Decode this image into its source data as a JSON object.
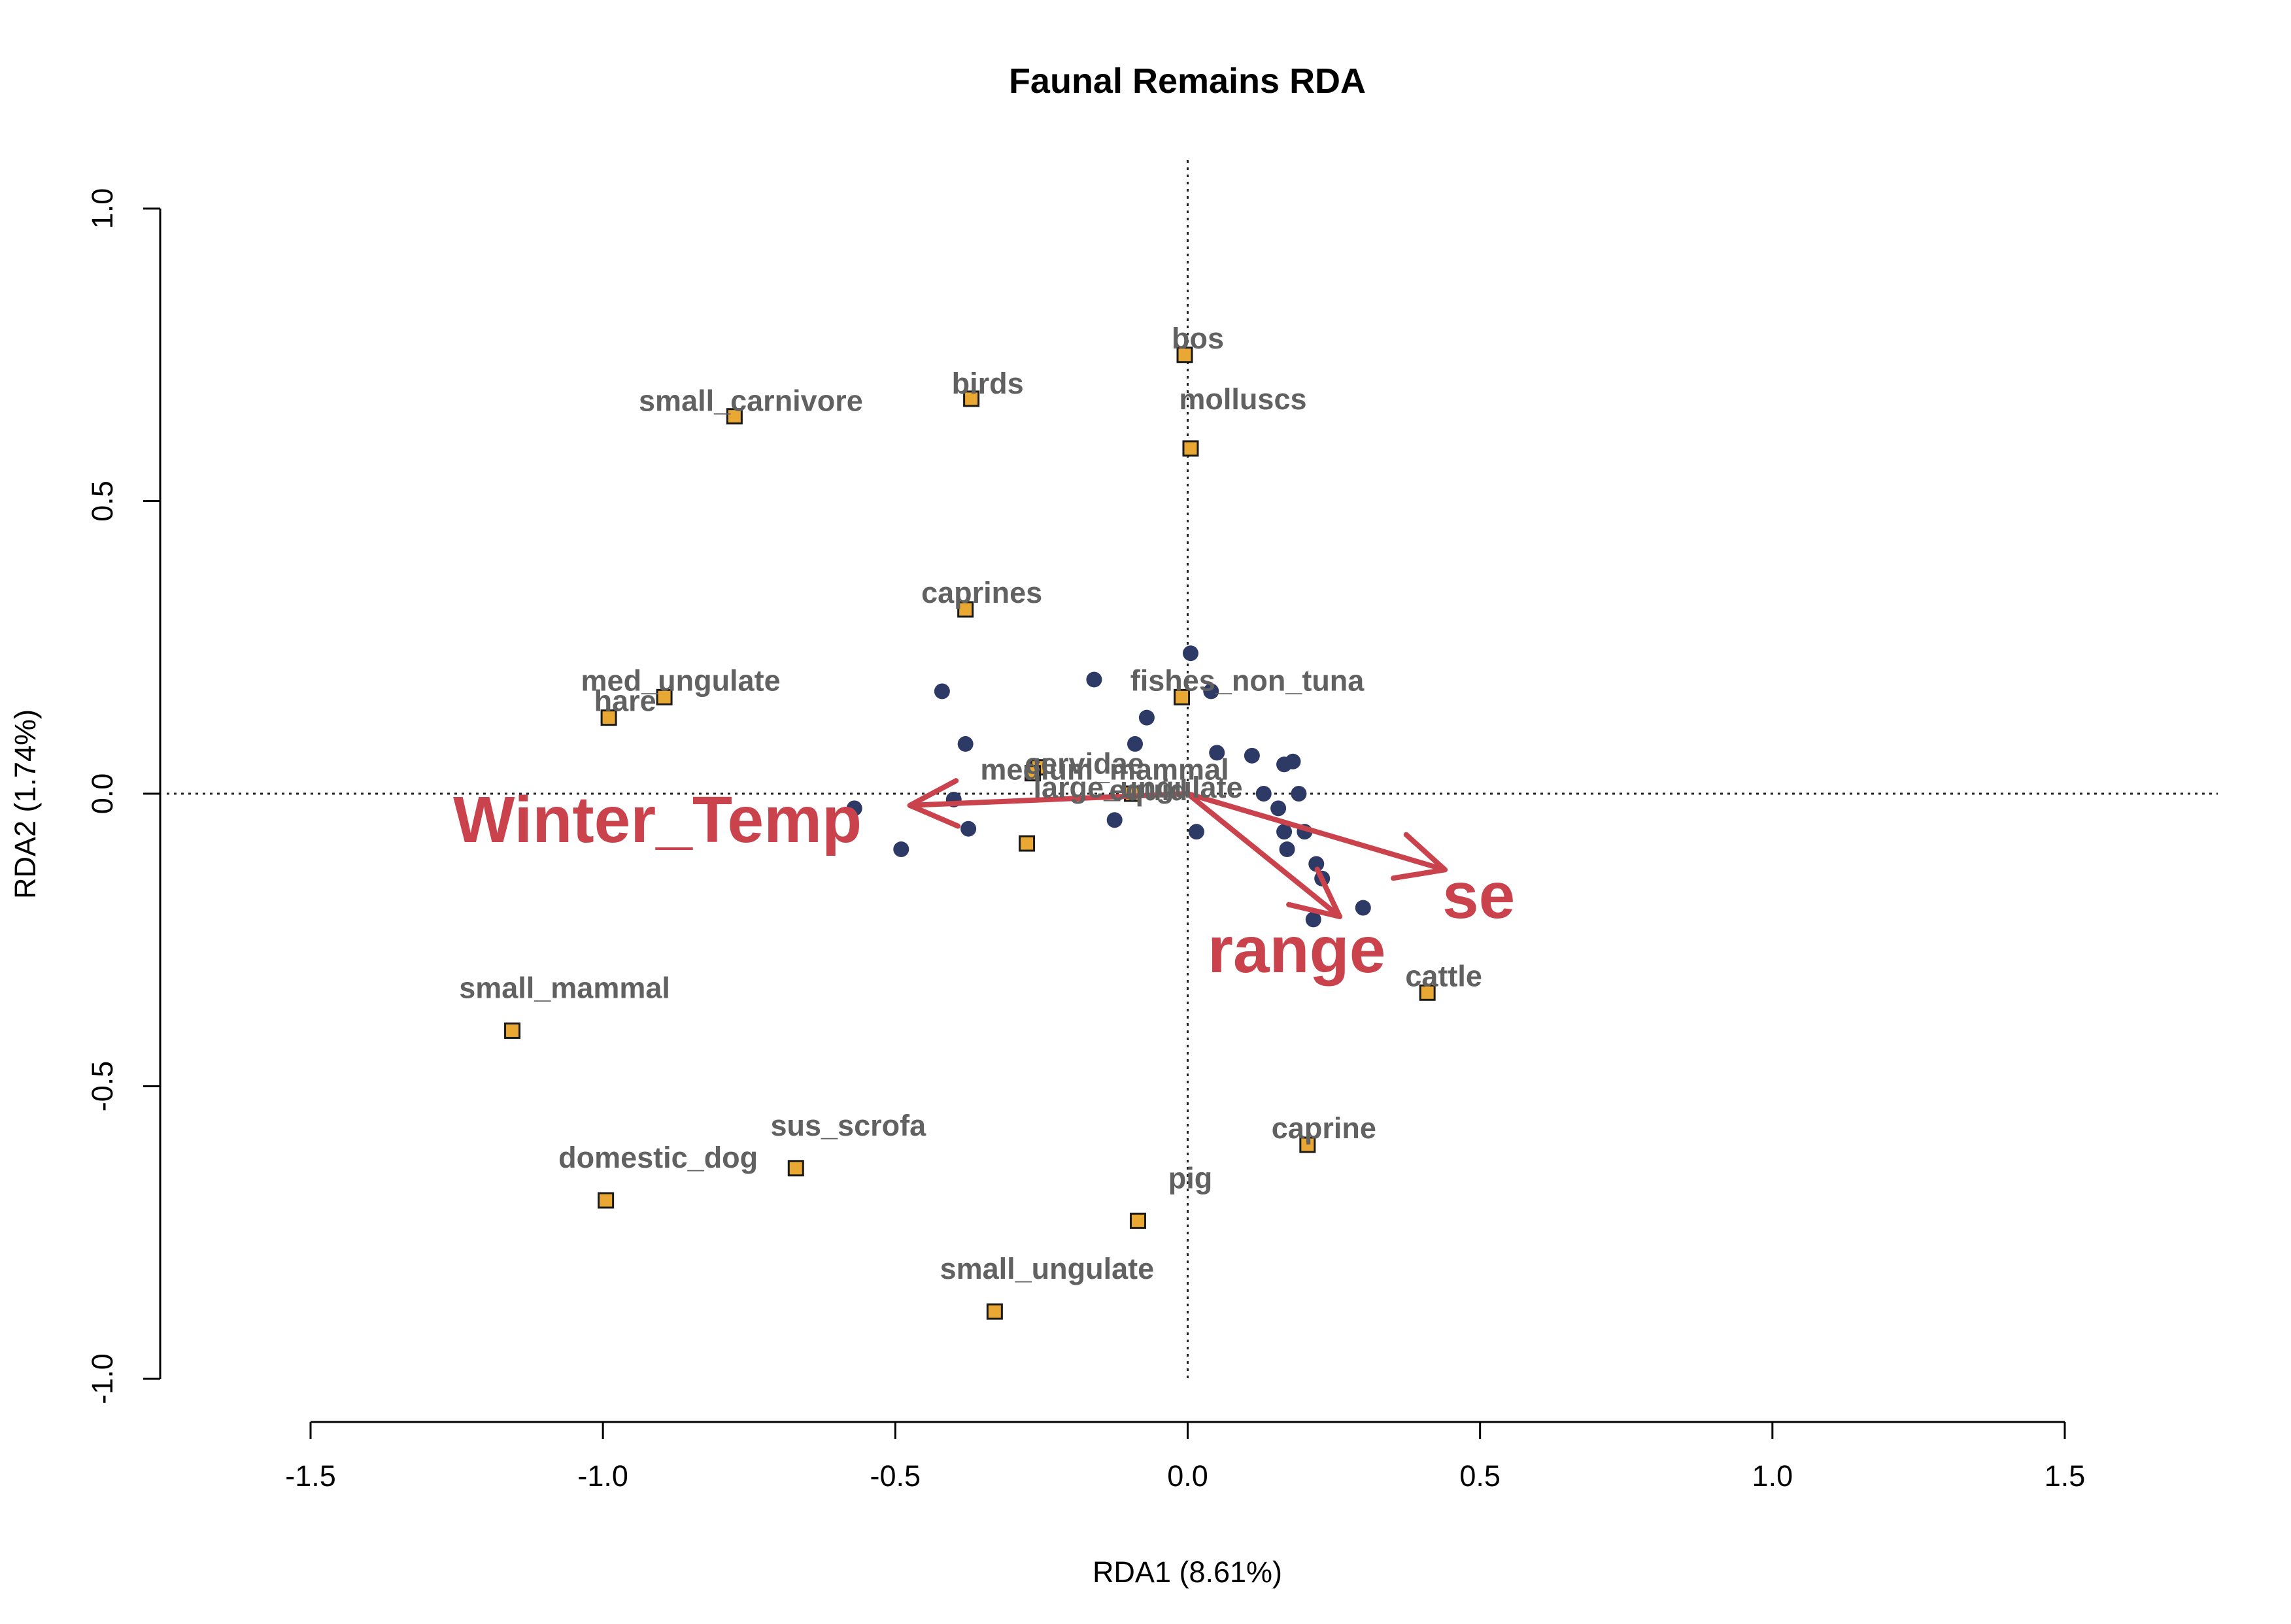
{
  "chart_data": {
    "type": "scatter",
    "title": "Faunal Remains RDA",
    "xlabel": "RDA1 (8.61%)",
    "ylabel": "RDA2 (1.74%)",
    "xlim": [
      -1.5,
      1.5
    ],
    "ylim": [
      -1.0,
      1.0
    ],
    "x_ticks": [
      "-1.5",
      "-1.0",
      "-0.5",
      "0.0",
      "0.5",
      "1.0",
      "1.5"
    ],
    "y_ticks": [
      "-1.0",
      "-0.5",
      "0.0",
      "0.5",
      "1.0"
    ],
    "origin_lines": "dotted",
    "grid": false,
    "colors": {
      "species_fill": "#E8A833",
      "species_stroke": "#1a1a1a",
      "site_fill": "#2E3A66",
      "arrow": "#C9424C",
      "label": "#616161"
    },
    "species": [
      {
        "name": "bos",
        "x": -0.005,
        "y": 0.75
      },
      {
        "name": "birds",
        "x": -0.37,
        "y": 0.675
      },
      {
        "name": "small_carnivore",
        "x": -0.775,
        "y": 0.645
      },
      {
        "name": "molluscs",
        "x": 0.005,
        "y": 0.59
      },
      {
        "name": "caprines",
        "x": -0.38,
        "y": 0.315
      },
      {
        "name": "fishes_non_tuna",
        "x": -0.01,
        "y": 0.165
      },
      {
        "name": "med_ungulate",
        "x": -0.895,
        "y": 0.165
      },
      {
        "name": "hare",
        "x": -0.99,
        "y": 0.13
      },
      {
        "name": "cervidae",
        "x": -0.255,
        "y": 0.045
      },
      {
        "name": "medium_mammal",
        "x": -0.265,
        "y": 0.035
      },
      {
        "name": "equid",
        "x": -0.095,
        "y": 0.0
      },
      {
        "name": "large_ungulate",
        "x": -0.275,
        "y": -0.085
      },
      {
        "name": "cattle",
        "x": 0.41,
        "y": -0.34
      },
      {
        "name": "small_mammal",
        "x": -1.155,
        "y": -0.405
      },
      {
        "name": "caprine",
        "x": 0.205,
        "y": -0.6
      },
      {
        "name": "sus_scrofa",
        "x": -0.67,
        "y": -0.64
      },
      {
        "name": "domestic_dog",
        "x": -0.995,
        "y": -0.695
      },
      {
        "name": "pig",
        "x": -0.085,
        "y": -0.73
      },
      {
        "name": "small_ungulate",
        "x": -0.33,
        "y": -0.885
      }
    ],
    "sites": [
      {
        "x": 0.005,
        "y": 0.24
      },
      {
        "x": -0.42,
        "y": 0.175
      },
      {
        "x": -0.16,
        "y": 0.195
      },
      {
        "x": 0.04,
        "y": 0.175
      },
      {
        "x": -0.07,
        "y": 0.13
      },
      {
        "x": -0.38,
        "y": 0.085
      },
      {
        "x": -0.09,
        "y": 0.085
      },
      {
        "x": 0.05,
        "y": 0.07
      },
      {
        "x": 0.11,
        "y": 0.065
      },
      {
        "x": 0.165,
        "y": 0.05
      },
      {
        "x": 0.18,
        "y": 0.055
      },
      {
        "x": -0.4,
        "y": -0.01
      },
      {
        "x": 0.13,
        "y": 0.0
      },
      {
        "x": 0.19,
        "y": 0.0
      },
      {
        "x": -0.57,
        "y": -0.025
      },
      {
        "x": 0.155,
        "y": -0.025
      },
      {
        "x": -0.125,
        "y": -0.045
      },
      {
        "x": 0.015,
        "y": -0.065
      },
      {
        "x": 0.165,
        "y": -0.065
      },
      {
        "x": 0.2,
        "y": -0.065
      },
      {
        "x": -0.375,
        "y": -0.06
      },
      {
        "x": -0.49,
        "y": -0.095
      },
      {
        "x": 0.17,
        "y": -0.095
      },
      {
        "x": 0.22,
        "y": -0.12
      },
      {
        "x": 0.23,
        "y": -0.145
      },
      {
        "x": 0.3,
        "y": -0.195
      },
      {
        "x": 0.215,
        "y": -0.215
      }
    ],
    "env_vectors": [
      {
        "name": "Winter_Temp",
        "x": -0.475,
        "y": -0.02
      },
      {
        "name": "se",
        "x": 0.44,
        "y": -0.13
      },
      {
        "name": "range",
        "x": 0.26,
        "y": -0.21
      }
    ]
  }
}
